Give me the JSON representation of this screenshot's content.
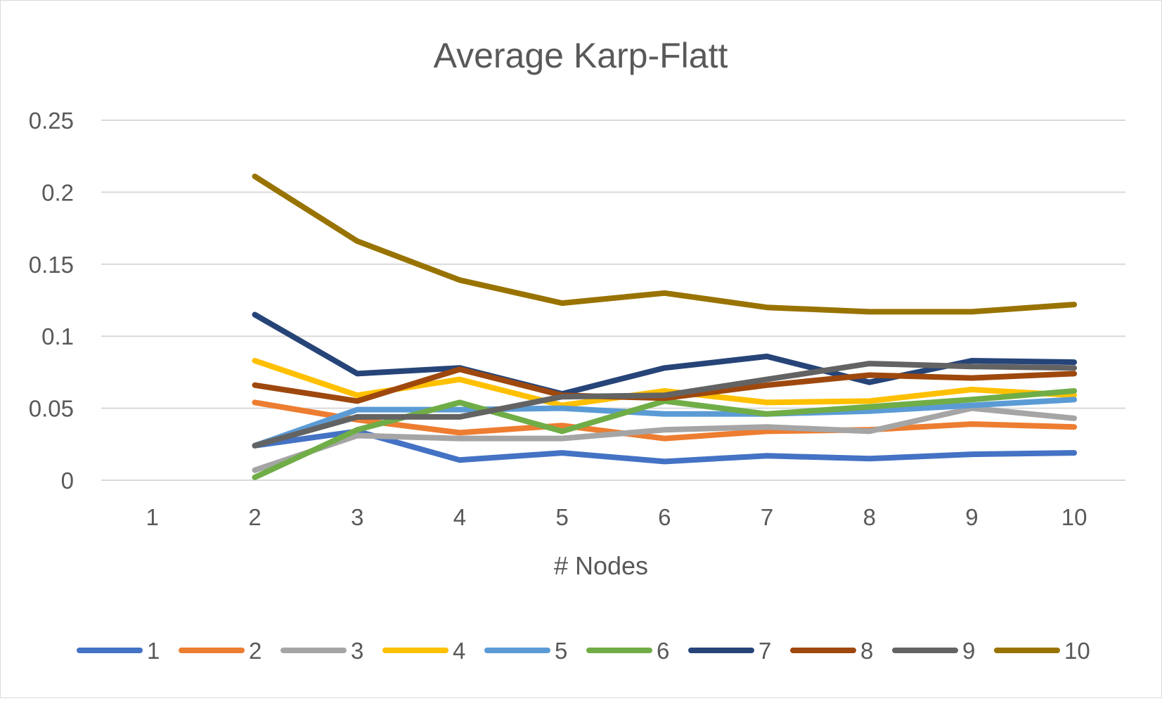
{
  "chart_data": {
    "type": "line",
    "title": "Average Karp-Flatt",
    "xlabel": "# Nodes",
    "ylabel": "",
    "categories": [
      "1",
      "2",
      "3",
      "4",
      "5",
      "6",
      "7",
      "8",
      "9",
      "10"
    ],
    "yticks": [
      "0",
      "0.05",
      "0.1",
      "0.15",
      "0.2",
      "0.25"
    ],
    "ylim": [
      0,
      0.25
    ],
    "grid": true,
    "legend_position": "bottom",
    "series": [
      {
        "name": "1",
        "color": "#4472C4",
        "values": [
          null,
          0.024,
          0.034,
          0.014,
          0.019,
          0.013,
          0.017,
          0.015,
          0.018,
          0.019
        ]
      },
      {
        "name": "2",
        "color": "#ED7D31",
        "values": [
          null,
          0.054,
          0.042,
          0.033,
          0.038,
          0.029,
          0.034,
          0.035,
          0.039,
          0.037
        ]
      },
      {
        "name": "3",
        "color": "#A5A5A5",
        "values": [
          null,
          0.007,
          0.031,
          0.029,
          0.029,
          0.035,
          0.037,
          0.034,
          0.05,
          0.043
        ]
      },
      {
        "name": "4",
        "color": "#FFC000",
        "values": [
          null,
          0.083,
          0.059,
          0.07,
          0.052,
          0.062,
          0.054,
          0.055,
          0.063,
          0.059
        ]
      },
      {
        "name": "5",
        "color": "#5B9BD5",
        "values": [
          null,
          0.024,
          0.049,
          0.049,
          0.05,
          0.046,
          0.046,
          0.048,
          0.052,
          0.056
        ]
      },
      {
        "name": "6",
        "color": "#70AD47",
        "values": [
          null,
          0.002,
          0.035,
          0.054,
          0.034,
          0.055,
          0.046,
          0.051,
          0.056,
          0.062
        ]
      },
      {
        "name": "7",
        "color": "#264478",
        "values": [
          null,
          0.115,
          0.074,
          0.078,
          0.06,
          0.078,
          0.086,
          0.068,
          0.083,
          0.082
        ]
      },
      {
        "name": "8",
        "color": "#9E480E",
        "values": [
          null,
          0.066,
          0.055,
          0.077,
          0.059,
          0.057,
          0.066,
          0.073,
          0.071,
          0.074
        ]
      },
      {
        "name": "9",
        "color": "#636363",
        "values": [
          null,
          0.024,
          0.044,
          0.044,
          0.058,
          0.059,
          0.07,
          0.081,
          0.079,
          0.078
        ]
      },
      {
        "name": "10",
        "color": "#997300",
        "values": [
          null,
          0.211,
          0.166,
          0.139,
          0.123,
          0.13,
          0.12,
          0.117,
          0.117,
          0.122
        ]
      }
    ]
  }
}
